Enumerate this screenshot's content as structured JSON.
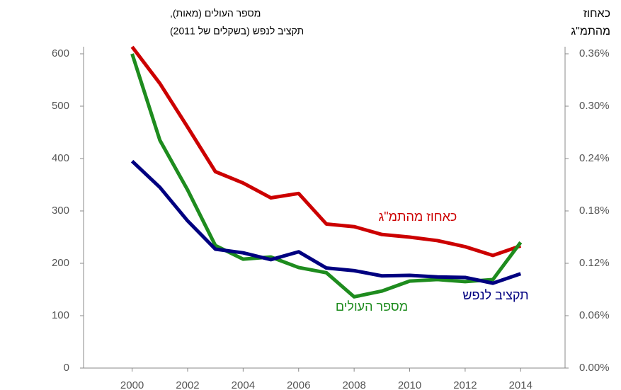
{
  "chart_data": {
    "type": "line",
    "y_title": [
      "מספר העולים (מאות),",
      "תקציב לנפש (בשקלים של 2011)"
    ],
    "y2_title": [
      "כאחוז",
      "מהתמ\"ג"
    ],
    "x": [
      2000,
      2001,
      2002,
      2003,
      2004,
      2005,
      2006,
      2007,
      2008,
      2009,
      2010,
      2011,
      2012,
      2013,
      2014
    ],
    "xlim": [
      1998.25,
      2015.6
    ],
    "xticks": [
      2000,
      2002,
      2004,
      2006,
      2008,
      2010,
      2012,
      2014
    ],
    "ylim": [
      0,
      600
    ],
    "yticks": [
      0,
      100,
      200,
      300,
      400,
      500,
      600
    ],
    "y2lim": [
      0,
      0.36
    ],
    "y2ticks": [
      {
        "value": 0,
        "label": "0.00%"
      },
      {
        "value": 0.06,
        "label": "0.06%"
      },
      {
        "value": 0.12,
        "label": "0.12%"
      },
      {
        "value": 0.18,
        "label": "0.18%"
      },
      {
        "value": 0.24,
        "label": "0.24%"
      },
      {
        "value": 0.3,
        "label": "0.30%"
      },
      {
        "value": 0.36,
        "label": "0.36%"
      }
    ],
    "grid": false,
    "series": [
      {
        "name": "כאחוז מהתמ\"ג",
        "color": "#cc0000",
        "axis": "y2",
        "values": [
          0.368,
          0.326,
          0.276,
          0.225,
          0.212,
          0.195,
          0.2,
          0.165,
          0.162,
          0.153,
          0.15,
          0.146,
          0.139,
          0.129,
          0.14
        ]
      },
      {
        "name": "מספר העולים",
        "color": "#1e8c1e",
        "values": [
          600,
          435,
          340,
          234,
          208,
          212,
          192,
          182,
          136,
          147,
          166,
          169,
          165,
          169,
          240
        ]
      },
      {
        "name": "תקציב לנפש",
        "color": "#000080",
        "values": [
          395,
          345,
          281,
          227,
          220,
          207,
          222,
          191,
          186,
          176,
          177,
          174,
          173,
          162,
          180
        ]
      }
    ]
  }
}
